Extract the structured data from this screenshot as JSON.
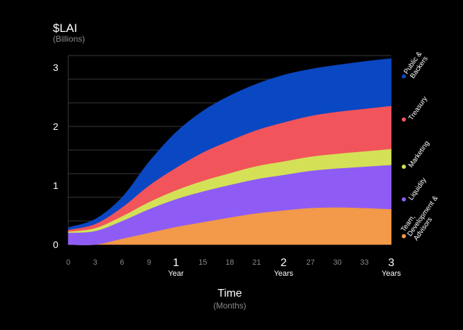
{
  "chart_data": {
    "type": "area",
    "stacked": true,
    "title": "$LAI",
    "subtitle": "(Billions)",
    "xlabel": "Time",
    "xlabel_sub": "(Months)",
    "ylabel": "",
    "xlim": [
      0,
      36
    ],
    "ylim": [
      0,
      3.2
    ],
    "y_ticks": [
      {
        "value": 0,
        "label": "0"
      },
      {
        "value": 1,
        "label": "1"
      },
      {
        "value": 2,
        "label": "2"
      },
      {
        "value": 3,
        "label": "3"
      }
    ],
    "x_ticks": [
      {
        "value": 0,
        "label": "0",
        "major": false
      },
      {
        "value": 3,
        "label": "3",
        "major": false
      },
      {
        "value": 6,
        "label": "6",
        "major": false
      },
      {
        "value": 9,
        "label": "9",
        "major": false
      },
      {
        "value": 12,
        "label": "1",
        "sub": "Year",
        "major": true
      },
      {
        "value": 15,
        "label": "15",
        "major": false
      },
      {
        "value": 18,
        "label": "18",
        "major": false
      },
      {
        "value": 21,
        "label": "21",
        "major": false
      },
      {
        "value": 24,
        "label": "2",
        "sub": "Years",
        "major": true
      },
      {
        "value": 27,
        "label": "27",
        "major": false
      },
      {
        "value": 30,
        "label": "30",
        "major": false
      },
      {
        "value": 33,
        "label": "33",
        "major": false
      },
      {
        "value": 36,
        "label": "3",
        "sub": "Years",
        "major": true
      }
    ],
    "grid": true,
    "legend_position": "right",
    "x": [
      0,
      3,
      6,
      9,
      12,
      15,
      18,
      21,
      24,
      27,
      30,
      33,
      36
    ],
    "series": [
      {
        "name": "Team, Development & Advisors",
        "color": "#f2994a",
        "values": [
          0,
          0,
          0.1,
          0.2,
          0.3,
          0.38,
          0.46,
          0.53,
          0.58,
          0.62,
          0.63,
          0.62,
          0.6
        ]
      },
      {
        "name": "Liquidity",
        "color": "#8e5cf5",
        "values": [
          0.2,
          0.23,
          0.3,
          0.4,
          0.47,
          0.52,
          0.55,
          0.58,
          0.6,
          0.63,
          0.66,
          0.7,
          0.75
        ]
      },
      {
        "name": "Marketing",
        "color": "#d4e157",
        "values": [
          0.02,
          0.05,
          0.08,
          0.12,
          0.15,
          0.18,
          0.2,
          0.22,
          0.23,
          0.24,
          0.25,
          0.26,
          0.27
        ]
      },
      {
        "name": "Treasury",
        "color": "#f2545b",
        "values": [
          0.03,
          0.07,
          0.15,
          0.28,
          0.38,
          0.48,
          0.55,
          0.61,
          0.66,
          0.69,
          0.71,
          0.72,
          0.73
        ]
      },
      {
        "name": "Public & Backers",
        "color": "#0a47c2",
        "values": [
          0.04,
          0.08,
          0.17,
          0.4,
          0.6,
          0.7,
          0.76,
          0.78,
          0.8,
          0.79,
          0.79,
          0.8,
          0.8
        ]
      }
    ],
    "legend": [
      {
        "lines": [
          "Public &",
          "Backers"
        ],
        "color": "#0a47c2"
      },
      {
        "lines": [
          "Treasury"
        ],
        "color": "#f2545b"
      },
      {
        "lines": [
          "Marketing"
        ],
        "color": "#d4e157"
      },
      {
        "lines": [
          "Liquidity"
        ],
        "color": "#8e5cf5"
      },
      {
        "lines": [
          "Team,",
          "Development &",
          "Advisors"
        ],
        "color": "#f2994a"
      }
    ]
  }
}
